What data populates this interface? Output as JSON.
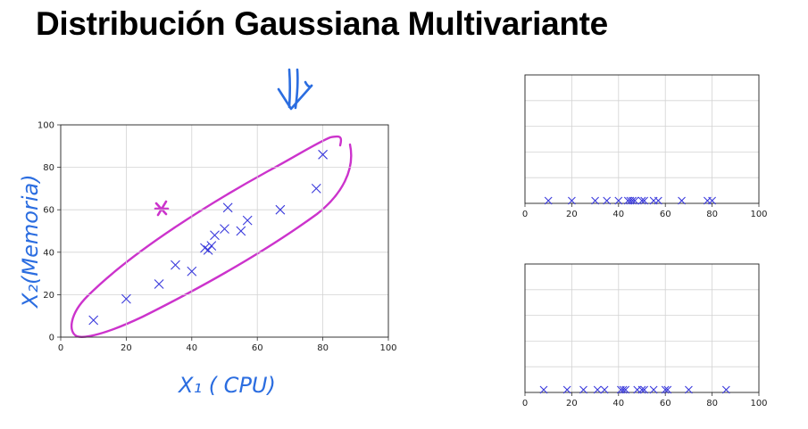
{
  "slide": {
    "title": "Distribución Gaussiana Multivariante"
  },
  "annotations": {
    "ylabel_handwritten": "X₂(Memoria)",
    "xlabel_handwritten": "X₁ ( CPU)",
    "ink_blue": "#2b6de0",
    "ink_magenta": "#cc33cc",
    "arrow_icon": "hand-drawn-down-arrow-icon",
    "outlier_mark": "hand-drawn-x-mark"
  },
  "chart_data": [
    {
      "type": "scatter",
      "title": "",
      "xlabel": "",
      "ylabel": "",
      "xlim": [
        0,
        100
      ],
      "ylim": [
        0,
        100
      ],
      "xticks": [
        0,
        20,
        40,
        60,
        80,
        100
      ],
      "yticks": [
        0,
        20,
        40,
        60,
        80,
        100
      ],
      "grid": true,
      "marker": "x",
      "color": "#3a3adc",
      "x": [
        10,
        20,
        30,
        35,
        40,
        44,
        45,
        46,
        47,
        50,
        51,
        55,
        57,
        67,
        78,
        80
      ],
      "y": [
        8,
        18,
        25,
        34,
        31,
        42,
        41,
        43,
        48,
        51,
        61,
        50,
        55,
        60,
        70,
        86
      ]
    },
    {
      "type": "scatter",
      "title": "",
      "xlabel": "",
      "ylabel": "",
      "xlim": [
        0,
        100
      ],
      "xticks": [
        0,
        20,
        40,
        60,
        80,
        100
      ],
      "grid": true,
      "marker": "x",
      "color": "#3a3adc",
      "x": [
        10,
        20,
        30,
        35,
        40,
        44,
        45,
        46,
        47,
        50,
        51,
        55,
        57,
        67,
        78,
        80
      ],
      "y": [
        0,
        0,
        0,
        0,
        0,
        0,
        0,
        0,
        0,
        0,
        0,
        0,
        0,
        0,
        0,
        0
      ]
    },
    {
      "type": "scatter",
      "title": "",
      "xlabel": "",
      "ylabel": "",
      "xlim": [
        0,
        100
      ],
      "xticks": [
        0,
        20,
        40,
        60,
        80,
        100
      ],
      "grid": true,
      "marker": "x",
      "color": "#3a3adc",
      "x": [
        8,
        18,
        25,
        31,
        34,
        41,
        42,
        43,
        48,
        50,
        51,
        55,
        60,
        61,
        70,
        86
      ],
      "y": [
        0,
        0,
        0,
        0,
        0,
        0,
        0,
        0,
        0,
        0,
        0,
        0,
        0,
        0,
        0,
        0
      ]
    }
  ]
}
